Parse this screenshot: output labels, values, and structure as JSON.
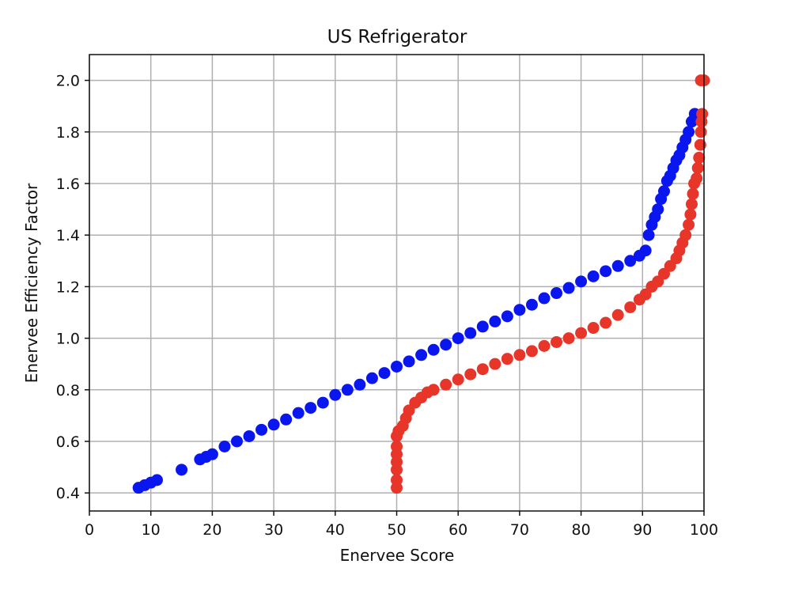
{
  "chart_data": {
    "type": "scatter",
    "title": "US Refrigerator",
    "xlabel": "Enervee Score",
    "ylabel": "Enervee Efficiency Factor",
    "xlim": [
      0,
      100
    ],
    "ylim": [
      0.33,
      2.1
    ],
    "xticks": [
      0,
      10,
      20,
      30,
      40,
      50,
      60,
      70,
      80,
      90,
      100
    ],
    "xtick_labels": [
      "0",
      "10",
      "20",
      "30",
      "40",
      "50",
      "60",
      "70",
      "80",
      "90",
      "100"
    ],
    "yticks": [
      0.4,
      0.6,
      0.8,
      1.0,
      1.2,
      1.4,
      1.6,
      1.8,
      2.0
    ],
    "ytick_labels": [
      "0.4",
      "0.6",
      "0.8",
      "1.0",
      "1.2",
      "1.4",
      "1.6",
      "1.8",
      "2.0"
    ],
    "grid": true,
    "legend": "none",
    "series": [
      {
        "color": "#0a16f0",
        "points": [
          [
            8,
            0.42
          ],
          [
            9,
            0.43
          ],
          [
            10,
            0.44
          ],
          [
            11,
            0.45
          ],
          [
            15,
            0.49
          ],
          [
            18,
            0.53
          ],
          [
            19,
            0.54
          ],
          [
            20,
            0.55
          ],
          [
            22,
            0.58
          ],
          [
            24,
            0.6
          ],
          [
            26,
            0.62
          ],
          [
            28,
            0.645
          ],
          [
            30,
            0.665
          ],
          [
            32,
            0.685
          ],
          [
            34,
            0.71
          ],
          [
            36,
            0.73
          ],
          [
            38,
            0.75
          ],
          [
            40,
            0.78
          ],
          [
            42,
            0.8
          ],
          [
            44,
            0.82
          ],
          [
            46,
            0.845
          ],
          [
            48,
            0.865
          ],
          [
            50,
            0.89
          ],
          [
            52,
            0.91
          ],
          [
            54,
            0.935
          ],
          [
            56,
            0.955
          ],
          [
            58,
            0.975
          ],
          [
            60,
            1.0
          ],
          [
            62,
            1.02
          ],
          [
            64,
            1.045
          ],
          [
            66,
            1.065
          ],
          [
            68,
            1.085
          ],
          [
            70,
            1.11
          ],
          [
            72,
            1.13
          ],
          [
            74,
            1.155
          ],
          [
            76,
            1.175
          ],
          [
            78,
            1.195
          ],
          [
            80,
            1.22
          ],
          [
            82,
            1.24
          ],
          [
            84,
            1.26
          ],
          [
            86,
            1.28
          ],
          [
            88,
            1.3
          ],
          [
            89.5,
            1.32
          ],
          [
            90.5,
            1.34
          ],
          [
            91,
            1.4
          ],
          [
            91.5,
            1.44
          ],
          [
            92,
            1.47
          ],
          [
            92.5,
            1.5
          ],
          [
            93,
            1.54
          ],
          [
            93.5,
            1.57
          ],
          [
            94,
            1.61
          ],
          [
            94.5,
            1.63
          ],
          [
            95,
            1.66
          ],
          [
            95.5,
            1.69
          ],
          [
            96,
            1.71
          ],
          [
            96.5,
            1.74
          ],
          [
            97,
            1.77
          ],
          [
            97.5,
            1.8
          ],
          [
            98,
            1.84
          ],
          [
            98.5,
            1.87
          ]
        ]
      },
      {
        "color": "#e8352a",
        "points": [
          [
            50,
            0.42
          ],
          [
            50,
            0.45
          ],
          [
            50,
            0.49
          ],
          [
            50,
            0.52
          ],
          [
            50,
            0.55
          ],
          [
            50,
            0.58
          ],
          [
            50,
            0.62
          ],
          [
            50.3,
            0.64
          ],
          [
            51,
            0.66
          ],
          [
            51.5,
            0.69
          ],
          [
            52,
            0.72
          ],
          [
            53,
            0.75
          ],
          [
            54,
            0.77
          ],
          [
            55,
            0.79
          ],
          [
            56,
            0.8
          ],
          [
            58,
            0.82
          ],
          [
            60,
            0.84
          ],
          [
            62,
            0.86
          ],
          [
            64,
            0.88
          ],
          [
            66,
            0.9
          ],
          [
            68,
            0.92
          ],
          [
            70,
            0.935
          ],
          [
            72,
            0.95
          ],
          [
            74,
            0.97
          ],
          [
            76,
            0.985
          ],
          [
            78,
            1.0
          ],
          [
            80,
            1.02
          ],
          [
            82,
            1.04
          ],
          [
            84,
            1.06
          ],
          [
            86,
            1.09
          ],
          [
            88,
            1.12
          ],
          [
            89.5,
            1.15
          ],
          [
            90.5,
            1.17
          ],
          [
            91.5,
            1.2
          ],
          [
            92.5,
            1.22
          ],
          [
            93.5,
            1.25
          ],
          [
            94.5,
            1.28
          ],
          [
            95.5,
            1.31
          ],
          [
            96,
            1.34
          ],
          [
            96.5,
            1.37
          ],
          [
            97,
            1.4
          ],
          [
            97.5,
            1.44
          ],
          [
            97.8,
            1.48
          ],
          [
            98,
            1.52
          ],
          [
            98.2,
            1.56
          ],
          [
            98.4,
            1.6
          ],
          [
            98.8,
            1.62
          ],
          [
            99,
            1.66
          ],
          [
            99.2,
            1.7
          ],
          [
            99.4,
            1.75
          ],
          [
            99.5,
            1.8
          ],
          [
            99.6,
            1.84
          ],
          [
            99.7,
            1.87
          ],
          [
            99.5,
            2.0
          ],
          [
            100,
            2.0
          ]
        ]
      }
    ]
  }
}
